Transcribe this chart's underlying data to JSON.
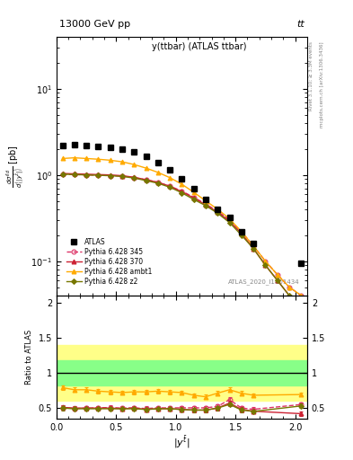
{
  "title_left": "13000 GeV pp",
  "title_right": "tt",
  "plot_title": "y(ttbar) (ATLAS ttbar)",
  "ylabel_ratio": "Ratio to ATLAS",
  "xlabel": "|y^{tbar}|",
  "atlas_label": "ATLAS_2020_I1801434",
  "x_centers": [
    0.05,
    0.15,
    0.25,
    0.35,
    0.45,
    0.55,
    0.65,
    0.75,
    0.85,
    0.95,
    1.05,
    1.15,
    1.25,
    1.35,
    1.45,
    1.55,
    1.65,
    1.75,
    1.85,
    1.95,
    2.05
  ],
  "atlas_y": [
    2.2,
    2.25,
    2.2,
    2.15,
    2.1,
    2.0,
    1.85,
    1.65,
    1.4,
    1.15,
    0.9,
    0.7,
    0.52,
    0.4,
    0.32,
    0.22,
    0.16,
    null,
    null,
    null,
    0.095
  ],
  "p345_y": [
    1.02,
    1.01,
    1.0,
    0.99,
    0.98,
    0.97,
    0.93,
    0.88,
    0.82,
    0.74,
    0.65,
    0.55,
    0.46,
    0.38,
    0.3,
    0.22,
    0.15,
    0.1,
    0.07,
    0.05,
    0.04
  ],
  "p370_y": [
    1.04,
    1.03,
    1.02,
    1.01,
    1.0,
    0.98,
    0.94,
    0.88,
    0.82,
    0.74,
    0.64,
    0.54,
    0.45,
    0.37,
    0.29,
    0.21,
    0.14,
    0.09,
    0.06,
    0.04,
    0.03
  ],
  "pambt1_y": [
    1.55,
    1.58,
    1.55,
    1.52,
    1.48,
    1.42,
    1.32,
    1.2,
    1.07,
    0.93,
    0.78,
    0.63,
    0.5,
    0.4,
    0.31,
    0.22,
    0.15,
    0.1,
    0.07,
    0.05,
    0.04
  ],
  "pz2_y": [
    1.02,
    1.01,
    1.0,
    0.99,
    0.98,
    0.96,
    0.92,
    0.86,
    0.8,
    0.72,
    0.62,
    0.52,
    0.44,
    0.36,
    0.28,
    0.2,
    0.14,
    0.09,
    0.06,
    0.04,
    0.03
  ],
  "color_345": "#dd3366",
  "color_370": "#cc2233",
  "color_ambt1": "#ffaa00",
  "color_z2": "#777700",
  "ratio_band_green_lo": 0.82,
  "ratio_band_green_hi": 1.18,
  "ratio_band_yellow_lo": 0.6,
  "ratio_band_yellow_hi": 1.4,
  "ratio_345": [
    0.505,
    0.493,
    0.498,
    0.503,
    0.508,
    0.5,
    0.503,
    0.493,
    0.503,
    0.503,
    0.503,
    0.503,
    0.503,
    0.523,
    0.62,
    0.5,
    0.482,
    null,
    null,
    null,
    0.55
  ],
  "ratio_370": [
    0.51,
    0.5,
    0.5,
    0.5,
    0.5,
    0.49,
    0.5,
    0.48,
    0.49,
    0.49,
    0.48,
    0.471,
    0.471,
    0.5,
    0.572,
    0.48,
    0.455,
    null,
    null,
    null,
    0.42
  ],
  "ratio_ambt1": [
    0.79,
    0.76,
    0.76,
    0.74,
    0.73,
    0.72,
    0.73,
    0.73,
    0.74,
    0.73,
    0.72,
    0.682,
    0.66,
    0.712,
    0.76,
    0.71,
    0.682,
    null,
    null,
    null,
    0.692
  ],
  "ratio_z2": [
    0.5,
    0.49,
    0.49,
    0.49,
    0.49,
    0.49,
    0.49,
    0.48,
    0.49,
    0.49,
    0.48,
    0.471,
    0.471,
    0.5,
    0.552,
    0.472,
    0.452,
    null,
    null,
    null,
    0.53
  ],
  "xlim": [
    0.0,
    2.1
  ],
  "ylim_main": [
    0.04,
    40.0
  ],
  "ylim_ratio": [
    0.35,
    2.1
  ],
  "rivet_text": "Rivet 3.1.10; ≥ 3.3M events",
  "mcplots_text": "mcplots.cern.ch [arXiv:1306.3436]"
}
